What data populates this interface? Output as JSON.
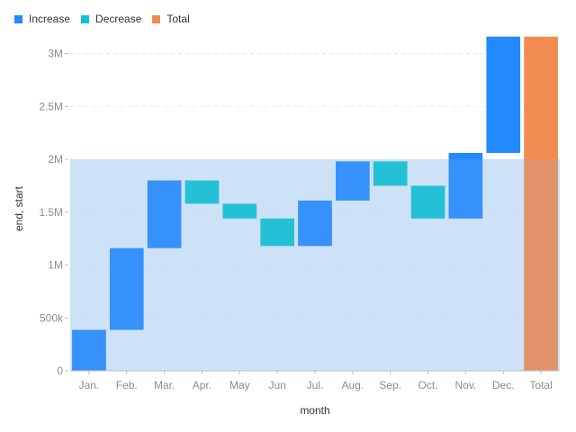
{
  "chart_data": {
    "type": "bar",
    "subtype": "waterfall",
    "xlabel": "month",
    "ylabel": "end, start",
    "ylim": [
      0,
      3200000
    ],
    "yticks": [
      0,
      500000,
      1000000,
      1500000,
      2000000,
      2500000,
      3000000
    ],
    "ytick_labels": [
      "0",
      "500k",
      "1M",
      "1.5M",
      "2M",
      "2.5M",
      "3M"
    ],
    "grid": true,
    "legend_position": "top-left",
    "legend": [
      {
        "name": "Increase",
        "color": "#2389ff"
      },
      {
        "name": "Decrease",
        "color": "#0dc4d4"
      },
      {
        "name": "Total",
        "color": "#f28b50"
      }
    ],
    "categories": [
      "Jan.",
      "Feb.",
      "Mar.",
      "Apr.",
      "May",
      "Jun",
      "Jul.",
      "Aug.",
      "Sep.",
      "Oct.",
      "Nov.",
      "Dec.",
      "Total"
    ],
    "bars": [
      {
        "category": "Jan.",
        "kind": "Increase",
        "start": 0,
        "end": 387000
      },
      {
        "category": "Feb.",
        "kind": "Increase",
        "start": 387000,
        "end": 1160000
      },
      {
        "category": "Mar.",
        "kind": "Increase",
        "start": 1160000,
        "end": 1800000
      },
      {
        "category": "Apr.",
        "kind": "Decrease",
        "start": 1800000,
        "end": 1580000
      },
      {
        "category": "May",
        "kind": "Decrease",
        "start": 1580000,
        "end": 1440000
      },
      {
        "category": "Jun",
        "kind": "Decrease",
        "start": 1440000,
        "end": 1180000
      },
      {
        "category": "Jul.",
        "kind": "Increase",
        "start": 1180000,
        "end": 1610000
      },
      {
        "category": "Aug.",
        "kind": "Increase",
        "start": 1610000,
        "end": 1980000
      },
      {
        "category": "Sep.",
        "kind": "Decrease",
        "start": 1980000,
        "end": 1750000
      },
      {
        "category": "Oct.",
        "kind": "Decrease",
        "start": 1750000,
        "end": 1440000
      },
      {
        "category": "Nov.",
        "kind": "Increase",
        "start": 1440000,
        "end": 2060000
      },
      {
        "category": "Dec.",
        "kind": "Increase",
        "start": 2060000,
        "end": 3160000
      },
      {
        "category": "Total",
        "kind": "Total",
        "start": 0,
        "end": 3160000
      }
    ],
    "highlight_region": {
      "y_from": 0,
      "y_to": 2000000,
      "color": "#cfe4fb"
    }
  }
}
